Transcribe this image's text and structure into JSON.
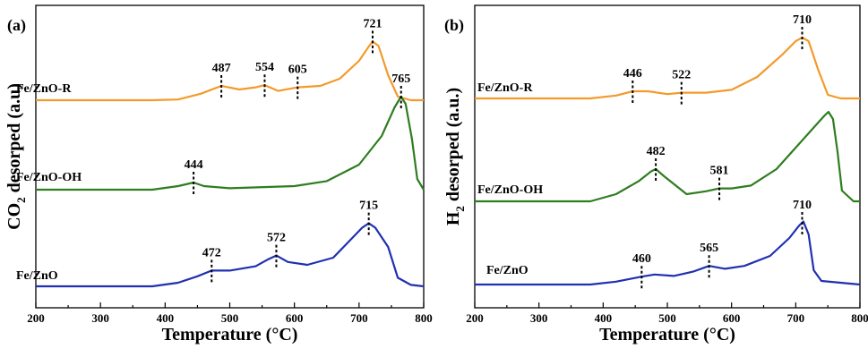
{
  "chart_data": [
    {
      "panel": "(a)",
      "type": "line",
      "xlabel": "Temperature (°C)",
      "ylabel": "CO2 desorped (a.u)",
      "ylabel_main": "CO",
      "ylabel_sub": "2",
      "ylabel_rest": " desorped (a.u)",
      "xlim": [
        200,
        800
      ],
      "xticks": [
        200,
        300,
        400,
        500,
        600,
        700,
        800
      ],
      "series": [
        {
          "name": "Fe/ZnO-R",
          "color": "#f39a2b",
          "peaks": [
            487,
            554,
            605,
            721
          ],
          "curve": [
            [
              200,
              0.0
            ],
            [
              380,
              0.0
            ],
            [
              420,
              0.01
            ],
            [
              455,
              0.09
            ],
            [
              487,
              0.2
            ],
            [
              515,
              0.15
            ],
            [
              540,
              0.18
            ],
            [
              554,
              0.21
            ],
            [
              575,
              0.13
            ],
            [
              605,
              0.18
            ],
            [
              640,
              0.2
            ],
            [
              670,
              0.3
            ],
            [
              700,
              0.55
            ],
            [
              715,
              0.75
            ],
            [
              721,
              0.82
            ],
            [
              730,
              0.76
            ],
            [
              745,
              0.35
            ],
            [
              760,
              0.05
            ],
            [
              780,
              0.0
            ],
            [
              800,
              0.0
            ]
          ]
        },
        {
          "name": "Fe/ZnO-OH",
          "color": "#2e7d1f",
          "peaks": [
            444,
            765
          ],
          "curve": [
            [
              200,
              0.0
            ],
            [
              380,
              0.0
            ],
            [
              420,
              0.05
            ],
            [
              444,
              0.1
            ],
            [
              460,
              0.05
            ],
            [
              500,
              0.02
            ],
            [
              600,
              0.05
            ],
            [
              650,
              0.12
            ],
            [
              700,
              0.35
            ],
            [
              735,
              0.75
            ],
            [
              755,
              1.15
            ],
            [
              765,
              1.3
            ],
            [
              772,
              1.2
            ],
            [
              782,
              0.7
            ],
            [
              790,
              0.15
            ],
            [
              800,
              0.0
            ]
          ]
        },
        {
          "name": "Fe/ZnO",
          "color": "#2030b0",
          "peaks": [
            472,
            572,
            715
          ],
          "curve": [
            [
              200,
              0.0
            ],
            [
              380,
              0.0
            ],
            [
              420,
              0.05
            ],
            [
              450,
              0.14
            ],
            [
              472,
              0.22
            ],
            [
              500,
              0.22
            ],
            [
              540,
              0.28
            ],
            [
              560,
              0.38
            ],
            [
              572,
              0.43
            ],
            [
              590,
              0.34
            ],
            [
              620,
              0.3
            ],
            [
              660,
              0.4
            ],
            [
              690,
              0.68
            ],
            [
              705,
              0.82
            ],
            [
              715,
              0.88
            ],
            [
              725,
              0.82
            ],
            [
              745,
              0.55
            ],
            [
              760,
              0.12
            ],
            [
              780,
              0.02
            ],
            [
              800,
              0.0
            ]
          ]
        }
      ]
    },
    {
      "panel": "(b)",
      "type": "line",
      "xlabel": "Temperature (°C)",
      "ylabel": "H2 desorped (a.u.)",
      "ylabel_main": "H",
      "ylabel_sub": "2",
      "ylabel_rest": " desorped (a.u.)",
      "xlim": [
        200,
        800
      ],
      "xticks": [
        200,
        300,
        400,
        500,
        600,
        700,
        800
      ],
      "series": [
        {
          "name": "Fe/ZnO-R",
          "color": "#f39a2b",
          "peaks": [
            446,
            522,
            710
          ],
          "curve": [
            [
              200,
              0.0
            ],
            [
              380,
              0.0
            ],
            [
              420,
              0.04
            ],
            [
              446,
              0.1
            ],
            [
              470,
              0.1
            ],
            [
              500,
              0.06
            ],
            [
              522,
              0.08
            ],
            [
              560,
              0.08
            ],
            [
              600,
              0.12
            ],
            [
              640,
              0.3
            ],
            [
              680,
              0.62
            ],
            [
              700,
              0.8
            ],
            [
              710,
              0.85
            ],
            [
              720,
              0.8
            ],
            [
              735,
              0.4
            ],
            [
              750,
              0.05
            ],
            [
              770,
              0.0
            ],
            [
              800,
              0.0
            ]
          ]
        },
        {
          "name": "Fe/ZnO-OH",
          "color": "#2e7d1f",
          "peaks": [
            482,
            581
          ],
          "curve": [
            [
              200,
              0.0
            ],
            [
              380,
              0.0
            ],
            [
              420,
              0.1
            ],
            [
              455,
              0.28
            ],
            [
              475,
              0.42
            ],
            [
              482,
              0.45
            ],
            [
              495,
              0.35
            ],
            [
              530,
              0.1
            ],
            [
              560,
              0.14
            ],
            [
              581,
              0.18
            ],
            [
              600,
              0.18
            ],
            [
              630,
              0.22
            ],
            [
              670,
              0.45
            ],
            [
              700,
              0.75
            ],
            [
              730,
              1.05
            ],
            [
              745,
              1.2
            ],
            [
              751,
              1.25
            ],
            [
              758,
              1.15
            ],
            [
              765,
              0.7
            ],
            [
              772,
              0.15
            ],
            [
              790,
              0.0
            ],
            [
              800,
              0.0
            ]
          ]
        },
        {
          "name": "Fe/ZnO",
          "color": "#2030b0",
          "peaks": [
            460,
            565,
            710
          ],
          "curve": [
            [
              200,
              0.0
            ],
            [
              380,
              0.0
            ],
            [
              420,
              0.04
            ],
            [
              460,
              0.11
            ],
            [
              480,
              0.14
            ],
            [
              510,
              0.12
            ],
            [
              540,
              0.18
            ],
            [
              565,
              0.26
            ],
            [
              590,
              0.22
            ],
            [
              620,
              0.26
            ],
            [
              660,
              0.4
            ],
            [
              690,
              0.65
            ],
            [
              705,
              0.82
            ],
            [
              712,
              0.88
            ],
            [
              720,
              0.7
            ],
            [
              728,
              0.2
            ],
            [
              740,
              0.05
            ],
            [
              800,
              0.0
            ]
          ]
        }
      ]
    }
  ]
}
